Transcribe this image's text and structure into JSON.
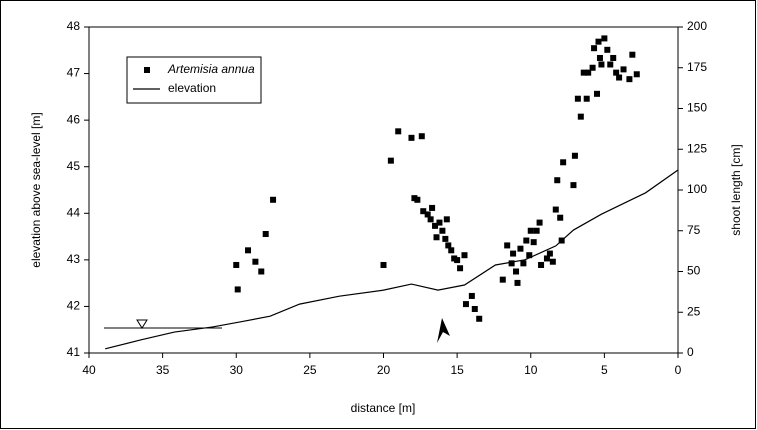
{
  "chart_data": {
    "type": "scatter",
    "xlabel": "distance [m]",
    "ylabel": "elevation above sea-level [m]",
    "y2label": "shoot length [cm]",
    "xlim": [
      40,
      0
    ],
    "xticks": [
      40,
      35,
      30,
      25,
      20,
      15,
      10,
      5,
      0
    ],
    "ylim": [
      41,
      48
    ],
    "yticks": [
      41,
      42,
      43,
      44,
      45,
      46,
      47,
      48
    ],
    "y2lim": [
      0,
      200
    ],
    "y2ticks": [
      0,
      25,
      50,
      75,
      100,
      125,
      150,
      175,
      200
    ],
    "grid": false,
    "legend": "upper left",
    "series": [
      {
        "name": "Artemisia annua",
        "type": "scatter",
        "axis": "y2",
        "color": "#000000",
        "x": [
          29.9,
          30,
          29.2,
          28.7,
          28.3,
          28,
          27.5,
          20,
          19.5,
          19,
          18.1,
          17.4,
          17.9,
          17.7,
          17.3,
          17.0,
          16.8,
          16.7,
          16.5,
          16.4,
          16.2,
          16,
          15.8,
          15.7,
          15.6,
          15.4,
          15.2,
          15.0,
          14.8,
          14.5,
          14.4,
          14.0,
          13.8,
          13.5,
          11.9,
          11.6,
          11.3,
          11.2,
          11.0,
          10.9,
          10.7,
          10.5,
          10.3,
          10.1,
          10.0,
          9.8,
          9.6,
          9.4,
          9.3,
          8.9,
          8.7,
          8.5,
          8.3,
          8.2,
          8.0,
          7.9,
          7.8,
          7.1,
          7.0,
          6.8,
          6.6,
          6.4,
          6.2,
          6.1,
          5.8,
          5.7,
          5.5,
          5.4,
          5.3,
          5.2,
          5.0,
          4.8,
          4.6,
          4.4,
          4.2,
          4.0,
          3.7,
          3.3,
          3.1,
          2.8
        ],
        "values": [
          39,
          54,
          63,
          56,
          50,
          73,
          94,
          54,
          118,
          136,
          132,
          133,
          95,
          94,
          87,
          85,
          82,
          89,
          78,
          71,
          80,
          75,
          70,
          82,
          66,
          63,
          58,
          57,
          52,
          60,
          30,
          35,
          27,
          21,
          45,
          66,
          55,
          61,
          50,
          43,
          64,
          55,
          69,
          60,
          75,
          68,
          75,
          80,
          54,
          58,
          61,
          56,
          88,
          106,
          83,
          69,
          117,
          103,
          121,
          156,
          145,
          172,
          156,
          172,
          175,
          187,
          159,
          191,
          181,
          177,
          193,
          186,
          177,
          181,
          172,
          169,
          174,
          168,
          183,
          171
        ]
      },
      {
        "name": "elevation",
        "type": "line",
        "axis": "y",
        "color": "#000000",
        "x": [
          38.9,
          36.5,
          34.2,
          31.6,
          29.7,
          27.7,
          25.7,
          23.0,
          20.0,
          18.1,
          16.3,
          14.5,
          12.4,
          10.4,
          8.3,
          7.1,
          5.2,
          2.2,
          0
        ],
        "values": [
          41.09,
          41.28,
          41.45,
          41.56,
          41.67,
          41.79,
          42.05,
          42.22,
          42.35,
          42.48,
          42.35,
          42.46,
          42.89,
          43.0,
          43.3,
          43.64,
          43.98,
          44.44,
          44.93
        ]
      }
    ]
  }
}
